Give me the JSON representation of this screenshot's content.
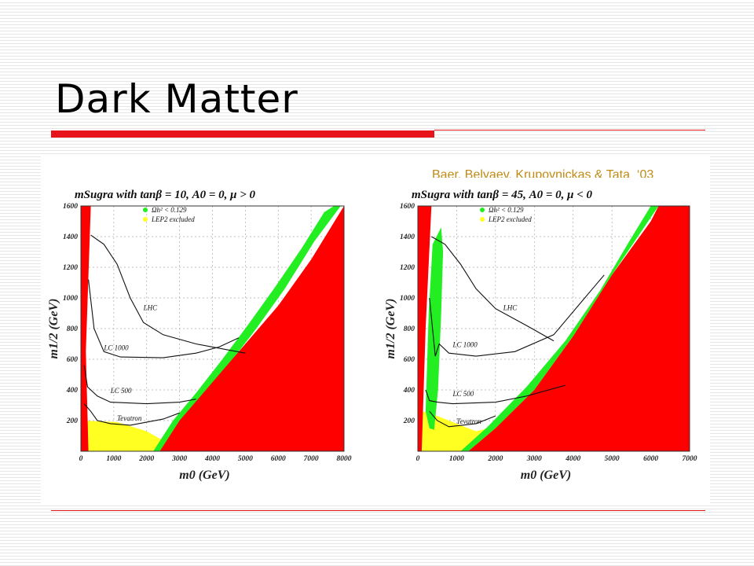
{
  "slide": {
    "title": "Dark Matter",
    "citation": "Baer, Belyaev, Krupovnickas & Tata  ‘03",
    "colors": {
      "accent_red": "#e8141b",
      "citation_gold": "#c08b14",
      "excluded_red": "#ff0000",
      "relic_green": "#22ee22",
      "lep_yellow": "#ffff22"
    }
  },
  "chart_data": [
    {
      "type": "area",
      "title": "mSugra with tanβ = 10, A0 = 0, μ > 0",
      "xlabel": "m0 (GeV)",
      "ylabel": "m1/2 (GeV)",
      "xlim": [
        0,
        8000
      ],
      "ylim": [
        0,
        1600
      ],
      "x_ticks": [
        "0",
        "1000",
        "2000",
        "3000",
        "4000",
        "5000",
        "6000",
        "7000",
        "8000"
      ],
      "y_ticks": [
        "200",
        "400",
        "600",
        "800",
        "1000",
        "1200",
        "1400",
        "1600"
      ],
      "grid": true,
      "legend": [
        {
          "label": "Ωh² < 0.129",
          "color": "#22ee22"
        },
        {
          "label": "LEP2 excluded",
          "color": "#ffff22"
        }
      ],
      "curve_labels": [
        "LHC",
        "LC 1000",
        "LC 500",
        "Tevatron"
      ],
      "excluded_left": [
        [
          0,
          0
        ],
        [
          0,
          1600
        ],
        [
          300,
          1600
        ],
        [
          150,
          650
        ],
        [
          230,
          0
        ]
      ],
      "excluded_right": [
        [
          2400,
          0
        ],
        [
          3000,
          200
        ],
        [
          4000,
          450
        ],
        [
          5000,
          700
        ],
        [
          6000,
          950
        ],
        [
          7000,
          1250
        ],
        [
          8000,
          1600
        ],
        [
          8000,
          0
        ]
      ],
      "green_band": [
        [
          2200,
          0
        ],
        [
          2800,
          200
        ],
        [
          3500,
          380
        ],
        [
          4300,
          600
        ],
        [
          5100,
          830
        ],
        [
          5900,
          1070
        ],
        [
          6700,
          1320
        ],
        [
          7400,
          1560
        ],
        [
          7700,
          1600
        ],
        [
          7900,
          1600
        ],
        [
          7100,
          1370
        ],
        [
          6200,
          1060
        ],
        [
          5300,
          790
        ],
        [
          4400,
          540
        ],
        [
          3600,
          330
        ],
        [
          2900,
          150
        ],
        [
          2500,
          0
        ]
      ],
      "lep2_band": [
        [
          0,
          0
        ],
        [
          0,
          200
        ],
        [
          1100,
          190
        ],
        [
          2000,
          130
        ],
        [
          2500,
          70
        ],
        [
          2700,
          0
        ]
      ],
      "curves": [
        {
          "name": "LHC",
          "points": [
            [
              300,
              1410
            ],
            [
              700,
              1350
            ],
            [
              1100,
              1220
            ],
            [
              1500,
              1000
            ],
            [
              1900,
              840
            ],
            [
              2500,
              760
            ],
            [
              3500,
              700
            ],
            [
              4500,
              660
            ],
            [
              5000,
              640
            ]
          ]
        },
        {
          "name": "LC 1000",
          "points": [
            [
              230,
              1120
            ],
            [
              400,
              800
            ],
            [
              700,
              650
            ],
            [
              1200,
              615
            ],
            [
              2500,
              610
            ],
            [
              3500,
              640
            ],
            [
              4200,
              680
            ],
            [
              4800,
              740
            ]
          ]
        },
        {
          "name": "LC 500",
          "points": [
            [
              100,
              560
            ],
            [
              200,
              420
            ],
            [
              500,
              360
            ],
            [
              900,
              320
            ],
            [
              2000,
              310
            ],
            [
              3000,
              320
            ],
            [
              3500,
              340
            ]
          ]
        },
        {
          "name": "Tevatron",
          "points": [
            [
              100,
              310
            ],
            [
              300,
              260
            ],
            [
              500,
              200
            ],
            [
              900,
              180
            ],
            [
              1500,
              170
            ],
            [
              2500,
              210
            ],
            [
              3000,
              250
            ]
          ]
        }
      ]
    },
    {
      "type": "area",
      "title": "mSugra with tanβ = 45, A0 = 0, μ < 0",
      "xlabel": "m0 (GeV)",
      "ylabel": "m1/2 (GeV)",
      "xlim": [
        0,
        7000
      ],
      "ylim": [
        0,
        1600
      ],
      "x_ticks": [
        "0",
        "1000",
        "2000",
        "3000",
        "4000",
        "5000",
        "6000",
        "7000"
      ],
      "y_ticks": [
        "200",
        "400",
        "600",
        "800",
        "1000",
        "1200",
        "1400",
        "1600"
      ],
      "grid": true,
      "legend": [
        {
          "label": "Ωh² < 0.129",
          "color": "#22ee22"
        },
        {
          "label": "LEP2 excluded",
          "color": "#ffff22"
        }
      ],
      "curve_labels": [
        "LHC",
        "LC 1000",
        "LC 500",
        "Tevatron"
      ],
      "excluded_left": [
        [
          0,
          0
        ],
        [
          0,
          1600
        ],
        [
          350,
          1600
        ],
        [
          200,
          800
        ],
        [
          100,
          0
        ]
      ],
      "excluded_right": [
        [
          1300,
          0
        ],
        [
          2000,
          150
        ],
        [
          3000,
          400
        ],
        [
          4000,
          750
        ],
        [
          5000,
          1150
        ],
        [
          6000,
          1500
        ],
        [
          6200,
          1600
        ],
        [
          7000,
          1600
        ],
        [
          7000,
          0
        ]
      ],
      "green_band": [
        [
          1100,
          0
        ],
        [
          1800,
          160
        ],
        [
          2800,
          420
        ],
        [
          3800,
          720
        ],
        [
          4700,
          1050
        ],
        [
          5400,
          1350
        ],
        [
          6000,
          1600
        ],
        [
          6200,
          1600
        ],
        [
          5000,
          1150
        ],
        [
          4000,
          750
        ],
        [
          3000,
          400
        ],
        [
          2000,
          150
        ],
        [
          1300,
          0
        ]
      ],
      "green_funnel": [
        [
          200,
          260
        ],
        [
          280,
          900
        ],
        [
          380,
          1350
        ],
        [
          600,
          1460
        ],
        [
          650,
          1300
        ],
        [
          600,
          900
        ],
        [
          520,
          400
        ],
        [
          420,
          140
        ],
        [
          300,
          150
        ]
      ],
      "lep2_band": [
        [
          0,
          120
        ],
        [
          0,
          270
        ],
        [
          500,
          230
        ],
        [
          1000,
          180
        ],
        [
          1500,
          130
        ],
        [
          2000,
          160
        ],
        [
          3000,
          380
        ],
        [
          3800,
          640
        ],
        [
          3600,
          560
        ],
        [
          2800,
          330
        ],
        [
          2000,
          100
        ],
        [
          1300,
          0
        ],
        [
          0,
          0
        ]
      ],
      "curves": [
        {
          "name": "LHC",
          "points": [
            [
              350,
              1400
            ],
            [
              700,
              1350
            ],
            [
              1100,
              1220
            ],
            [
              1500,
              1060
            ],
            [
              2000,
              930
            ],
            [
              2800,
              820
            ],
            [
              3500,
              720
            ]
          ]
        },
        {
          "name": "LC 1000",
          "points": [
            [
              300,
              1000
            ],
            [
              450,
              620
            ],
            [
              550,
              700
            ],
            [
              800,
              640
            ],
            [
              1500,
              620
            ],
            [
              2500,
              650
            ],
            [
              3500,
              760
            ],
            [
              4500,
              1060
            ],
            [
              4800,
              1150
            ]
          ]
        },
        {
          "name": "LC 500",
          "points": [
            [
              200,
              400
            ],
            [
              300,
              330
            ],
            [
              500,
              320
            ],
            [
              900,
              310
            ],
            [
              2000,
              320
            ],
            [
              2800,
              360
            ],
            [
              3800,
              430
            ]
          ]
        },
        {
          "name": "Tevatron",
          "points": [
            [
              300,
              260
            ],
            [
              500,
              200
            ],
            [
              800,
              160
            ],
            [
              1500,
              180
            ],
            [
              2000,
              230
            ]
          ]
        }
      ]
    }
  ]
}
